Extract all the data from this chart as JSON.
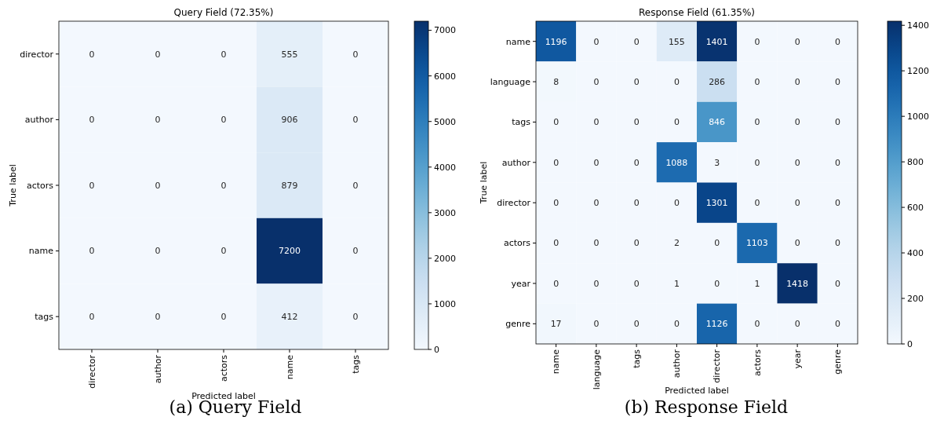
{
  "chart_data": [
    {
      "type": "heatmap",
      "title": "Query Field (72.35%)",
      "xlabel": "Predicted label",
      "ylabel": "True label",
      "categories": [
        "director",
        "author",
        "actors",
        "name",
        "tags"
      ],
      "y_categories": [
        "director",
        "author",
        "actors",
        "name",
        "tags"
      ],
      "cells": [
        [
          0,
          0,
          0,
          555,
          0
        ],
        [
          0,
          0,
          0,
          906,
          0
        ],
        [
          0,
          0,
          0,
          879,
          0
        ],
        [
          0,
          0,
          0,
          7200,
          0
        ],
        [
          0,
          0,
          0,
          412,
          0
        ]
      ],
      "clim": [
        0,
        7200
      ],
      "cticks": [
        0,
        1000,
        2000,
        3000,
        4000,
        5000,
        6000,
        7000
      ],
      "data_labels": true,
      "annotations": [
        "(a) Query Field"
      ]
    },
    {
      "type": "heatmap",
      "title": "Response Field (61.35%)",
      "xlabel": "Predicted label",
      "ylabel": "True label",
      "categories": [
        "name",
        "language",
        "tags",
        "author",
        "director",
        "actors",
        "year",
        "genre"
      ],
      "y_categories": [
        "name",
        "language",
        "tags",
        "author",
        "director",
        "actors",
        "year",
        "genre"
      ],
      "cells": [
        [
          1196,
          0,
          0,
          155,
          1401,
          0,
          0,
          0
        ],
        [
          8,
          0,
          0,
          0,
          286,
          0,
          0,
          0
        ],
        [
          0,
          0,
          0,
          0,
          846,
          0,
          0,
          0
        ],
        [
          0,
          0,
          0,
          1088,
          3,
          0,
          0,
          0
        ],
        [
          0,
          0,
          0,
          0,
          1301,
          0,
          0,
          0
        ],
        [
          0,
          0,
          0,
          2,
          0,
          1103,
          0,
          0
        ],
        [
          0,
          0,
          0,
          1,
          0,
          1,
          1418,
          0
        ],
        [
          17,
          0,
          0,
          0,
          1126,
          0,
          0,
          0
        ]
      ],
      "clim": [
        0,
        1418
      ],
      "cticks": [
        0,
        200,
        400,
        600,
        800,
        1000,
        1200,
        1400
      ],
      "data_labels": true,
      "annotations": [
        "(b) Response Field"
      ]
    }
  ]
}
